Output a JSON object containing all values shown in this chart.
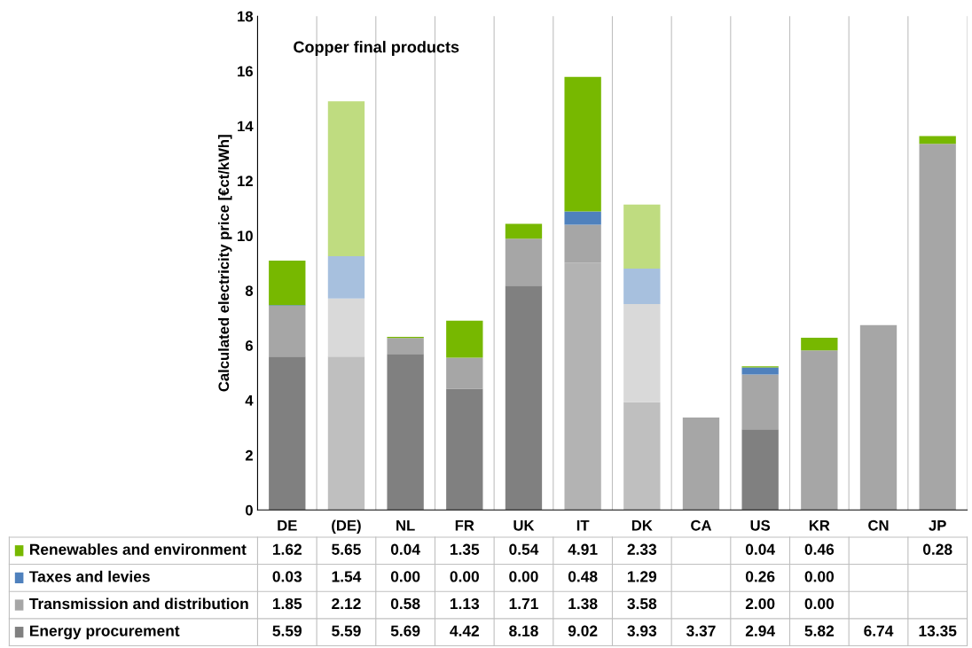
{
  "chart_data": {
    "type": "bar",
    "stacked": true,
    "title": "Copper final products",
    "ylabel": "Calculated electricity price [€ct/kWh]",
    "categories": [
      "DE",
      "(DE)",
      "NL",
      "FR",
      "UK",
      "IT",
      "DK",
      "CA",
      "US",
      "KR",
      "CN",
      "JP"
    ],
    "ylim": [
      0,
      18
    ],
    "yticks": [
      0,
      2,
      4,
      6,
      8,
      10,
      12,
      14,
      16,
      18
    ],
    "grid": false,
    "legend": "bottom left",
    "series": [
      {
        "name": "Energy procurement",
        "color": "#808080",
        "colors": [
          "#808080",
          "#bfbfbf",
          "#808080",
          "#808080",
          "#808080",
          "#b3b3b3",
          "#bfbfbf",
          "#a6a6a6",
          "#808080",
          "#a6a6a6",
          "#a6a6a6",
          "#a6a6a6"
        ],
        "values": [
          5.59,
          5.59,
          5.69,
          4.42,
          8.18,
          9.02,
          3.93,
          3.37,
          2.94,
          5.82,
          6.74,
          13.35
        ],
        "value_labels": [
          "5.59",
          "5.59",
          "5.69",
          "4.42",
          "8.18",
          "9.02",
          "3.93",
          "3.37",
          "2.94",
          "5.82",
          "6.74",
          "13.35"
        ]
      },
      {
        "name": "Transmission and distribution",
        "color": "#a6a6a6",
        "colors": [
          "#a6a6a6",
          "#d9d9d9",
          "#a6a6a6",
          "#a6a6a6",
          "#a6a6a6",
          "#a6a6a6",
          "#d9d9d9",
          "#a6a6a6",
          "#a6a6a6",
          "#a6a6a6",
          "#a6a6a6",
          "#a6a6a6"
        ],
        "values": [
          1.85,
          2.12,
          0.58,
          1.13,
          1.71,
          1.38,
          3.58,
          null,
          2.0,
          0.0,
          null,
          null
        ],
        "value_labels": [
          "1.85",
          "2.12",
          "0.58",
          "1.13",
          "1.71",
          "1.38",
          "3.58",
          null,
          "2.00",
          "0.00",
          null,
          null
        ]
      },
      {
        "name": "Taxes and levies",
        "color": "#4f81bd",
        "colors": [
          "#4f81bd",
          "#a7c0de",
          "#4f81bd",
          "#4f81bd",
          "#4f81bd",
          "#4f81bd",
          "#a7c0de",
          "#4f81bd",
          "#4f81bd",
          "#4f81bd",
          "#4f81bd",
          "#4f81bd"
        ],
        "values": [
          0.03,
          1.54,
          0.0,
          0.0,
          0.0,
          0.48,
          1.29,
          null,
          0.26,
          0.0,
          null,
          null
        ],
        "value_labels": [
          "0.03",
          "1.54",
          "0.00",
          "0.00",
          "0.00",
          "0.48",
          "1.29",
          null,
          "0.26",
          "0.00",
          null,
          null
        ]
      },
      {
        "name": "Renewables and environment",
        "color": "#77b800",
        "colors": [
          "#77b800",
          "#bfdc80",
          "#77b800",
          "#77b800",
          "#77b800",
          "#77b800",
          "#bfdc80",
          "#77b800",
          "#77b800",
          "#77b800",
          "#77b800",
          "#77b800"
        ],
        "values": [
          1.62,
          5.65,
          0.04,
          1.35,
          0.54,
          4.91,
          2.33,
          null,
          0.04,
          0.46,
          null,
          0.28
        ],
        "value_labels": [
          "1.62",
          "5.65",
          "0.04",
          "1.35",
          "0.54",
          "4.91",
          "2.33",
          null,
          "0.04",
          "0.46",
          null,
          "0.28"
        ]
      }
    ]
  }
}
